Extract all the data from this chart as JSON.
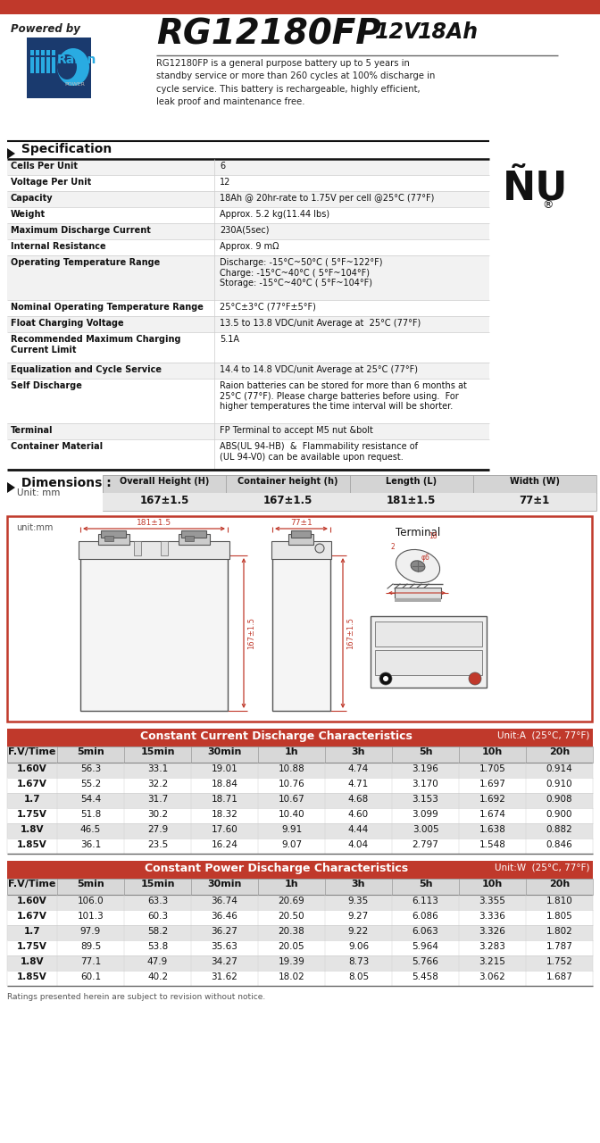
{
  "title_model": "RG12180FP",
  "title_voltage": "12V",
  "title_ah": "18Ah",
  "powered_by": "Powered by",
  "description": "RG12180FP is a general purpose battery up to 5 years in\nstandby service or more than 260 cycles at 100% discharge in\ncycle service. This battery is rechargeable, highly efficient,\nleak proof and maintenance free.",
  "header_bar_color": "#c0392b",
  "table_header_bg": "#c0392b",
  "table_header_color": "#ffffff",
  "bg_color": "#ffffff",
  "diagram_border_color": "#c0392b",
  "spec_rows": [
    [
      "Cells Per Unit",
      "6",
      18
    ],
    [
      "Voltage Per Unit",
      "12",
      18
    ],
    [
      "Capacity",
      "18Ah @ 20hr-rate to 1.75V per cell @25°C (77°F)",
      18
    ],
    [
      "Weight",
      "Approx. 5.2 kg(11.44 lbs)",
      18
    ],
    [
      "Maximum Discharge Current",
      "230A(5sec)",
      18
    ],
    [
      "Internal Resistance",
      "Approx. 9 mΩ",
      18
    ],
    [
      "Operating Temperature Range",
      "Discharge: -15°C~50°C ( 5°F~122°F)\nCharge: -15°C~40°C ( 5°F~104°F)\nStorage: -15°C~40°C ( 5°F~104°F)",
      50
    ],
    [
      "Nominal Operating Temperature Range",
      "25°C±3°C (77°F±5°F)",
      18
    ],
    [
      "Float Charging Voltage",
      "13.5 to 13.8 VDC/unit Average at  25°C (77°F)",
      18
    ],
    [
      "Recommended Maximum Charging\nCurrent Limit",
      "5.1A",
      34
    ],
    [
      "Equalization and Cycle Service",
      "14.4 to 14.8 VDC/unit Average at 25°C (77°F)",
      18
    ],
    [
      "Self Discharge",
      "Raion batteries can be stored for more than 6 months at\n25°C (77°F). Please charge batteries before using.  For\nhigher temperatures the time interval will be shorter.",
      50
    ],
    [
      "Terminal",
      "FP Terminal to accept M5 nut &bolt",
      18
    ],
    [
      "Container Material",
      "ABS(UL 94-HB)  &  Flammability resistance of\n(UL 94-V0) can be available upon request.",
      34
    ]
  ],
  "dim_cols": [
    "Overall Height (H)",
    "Container height (h)",
    "Length (L)",
    "Width (W)"
  ],
  "dim_vals": [
    "167±1.5",
    "167±1.5",
    "181±1.5",
    "77±1"
  ],
  "cc_title": "Constant Current Discharge Characteristics",
  "cc_unit": "Unit:A  (25°C, 77°F)",
  "cc_cols": [
    "F.V/Time",
    "5min",
    "15min",
    "30min",
    "1h",
    "3h",
    "5h",
    "10h",
    "20h"
  ],
  "cc_data": [
    [
      "1.60V",
      "56.3",
      "33.1",
      "19.01",
      "10.88",
      "4.74",
      "3.196",
      "1.705",
      "0.914"
    ],
    [
      "1.67V",
      "55.2",
      "32.2",
      "18.84",
      "10.76",
      "4.71",
      "3.170",
      "1.697",
      "0.910"
    ],
    [
      "1.7",
      "54.4",
      "31.7",
      "18.71",
      "10.67",
      "4.68",
      "3.153",
      "1.692",
      "0.908"
    ],
    [
      "1.75V",
      "51.8",
      "30.2",
      "18.32",
      "10.40",
      "4.60",
      "3.099",
      "1.674",
      "0.900"
    ],
    [
      "1.8V",
      "46.5",
      "27.9",
      "17.60",
      "9.91",
      "4.44",
      "3.005",
      "1.638",
      "0.882"
    ],
    [
      "1.85V",
      "36.1",
      "23.5",
      "16.24",
      "9.07",
      "4.04",
      "2.797",
      "1.548",
      "0.846"
    ]
  ],
  "cp_title": "Constant Power Discharge Characteristics",
  "cp_unit": "Unit:W  (25°C, 77°F)",
  "cp_cols": [
    "F.V/Time",
    "5min",
    "15min",
    "30min",
    "1h",
    "3h",
    "5h",
    "10h",
    "20h"
  ],
  "cp_data": [
    [
      "1.60V",
      "106.0",
      "63.3",
      "36.74",
      "20.69",
      "9.35",
      "6.113",
      "3.355",
      "1.810"
    ],
    [
      "1.67V",
      "101.3",
      "60.3",
      "36.46",
      "20.50",
      "9.27",
      "6.086",
      "3.336",
      "1.805"
    ],
    [
      "1.7",
      "97.9",
      "58.2",
      "36.27",
      "20.38",
      "9.22",
      "6.063",
      "3.326",
      "1.802"
    ],
    [
      "1.75V",
      "89.5",
      "53.8",
      "35.63",
      "20.05",
      "9.06",
      "5.964",
      "3.283",
      "1.787"
    ],
    [
      "1.8V",
      "77.1",
      "47.9",
      "34.27",
      "19.39",
      "8.73",
      "5.766",
      "3.215",
      "1.752"
    ],
    [
      "1.85V",
      "60.1",
      "40.2",
      "31.62",
      "18.02",
      "8.05",
      "5.458",
      "3.062",
      "1.687"
    ]
  ],
  "footer_note": "Ratings presented herein are subject to revision without notice."
}
